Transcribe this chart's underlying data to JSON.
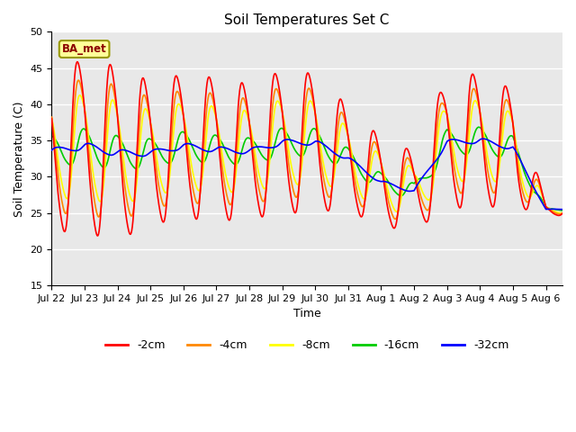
{
  "title": "Soil Temperatures Set C",
  "xlabel": "Time",
  "ylabel": "Soil Temperature (C)",
  "ylim": [
    15,
    50
  ],
  "yticks": [
    15,
    20,
    25,
    30,
    35,
    40,
    45,
    50
  ],
  "annotation": "BA_met",
  "plot_bg_color": "#e8e8e8",
  "series": {
    "-2cm": {
      "color": "#ff0000",
      "lw": 1.2
    },
    "-4cm": {
      "color": "#ff8800",
      "lw": 1.2
    },
    "-8cm": {
      "color": "#ffff00",
      "lw": 1.2
    },
    "-16cm": {
      "color": "#00cc00",
      "lw": 1.2
    },
    "-32cm": {
      "color": "#0000ff",
      "lw": 1.2
    }
  },
  "num_days": 15.5,
  "points_per_day": 288,
  "xtick_labels": [
    "Jul 22",
    "Jul 23",
    "Jul 24",
    "Jul 25",
    "Jul 26",
    "Jul 27",
    "Jul 28",
    "Jul 29",
    "Jul 30",
    "Jul 31",
    "Aug 1",
    "Aug 2",
    "Aug 3",
    "Aug 4",
    "Aug 5",
    "Aug 6"
  ],
  "base_temp": 27.0,
  "peak_hour": 14,
  "day_peak_temps_2cm": [
    46.5,
    48.5,
    47.5,
    45.0,
    46.0,
    45.5,
    44.5,
    46.5,
    46.0,
    41.0,
    36.5,
    34.5,
    45.5,
    46.0,
    43.5,
    26.5
  ],
  "day_trough_temps_2cm": [
    20.5,
    20.0,
    19.0,
    21.5,
    22.5,
    22.0,
    22.5,
    23.0,
    23.5,
    24.0,
    22.0,
    21.5,
    24.0,
    24.0,
    24.5,
    24.5
  ],
  "amplitude_ratios": {
    "4cm": 0.78,
    "8cm": 0.6,
    "16cm": 0.2,
    "32cm": 0.04
  },
  "phase_lags_hours": {
    "4cm": 0.8,
    "8cm": 1.8,
    "16cm": 4.5,
    "32cm": 9.0
  }
}
